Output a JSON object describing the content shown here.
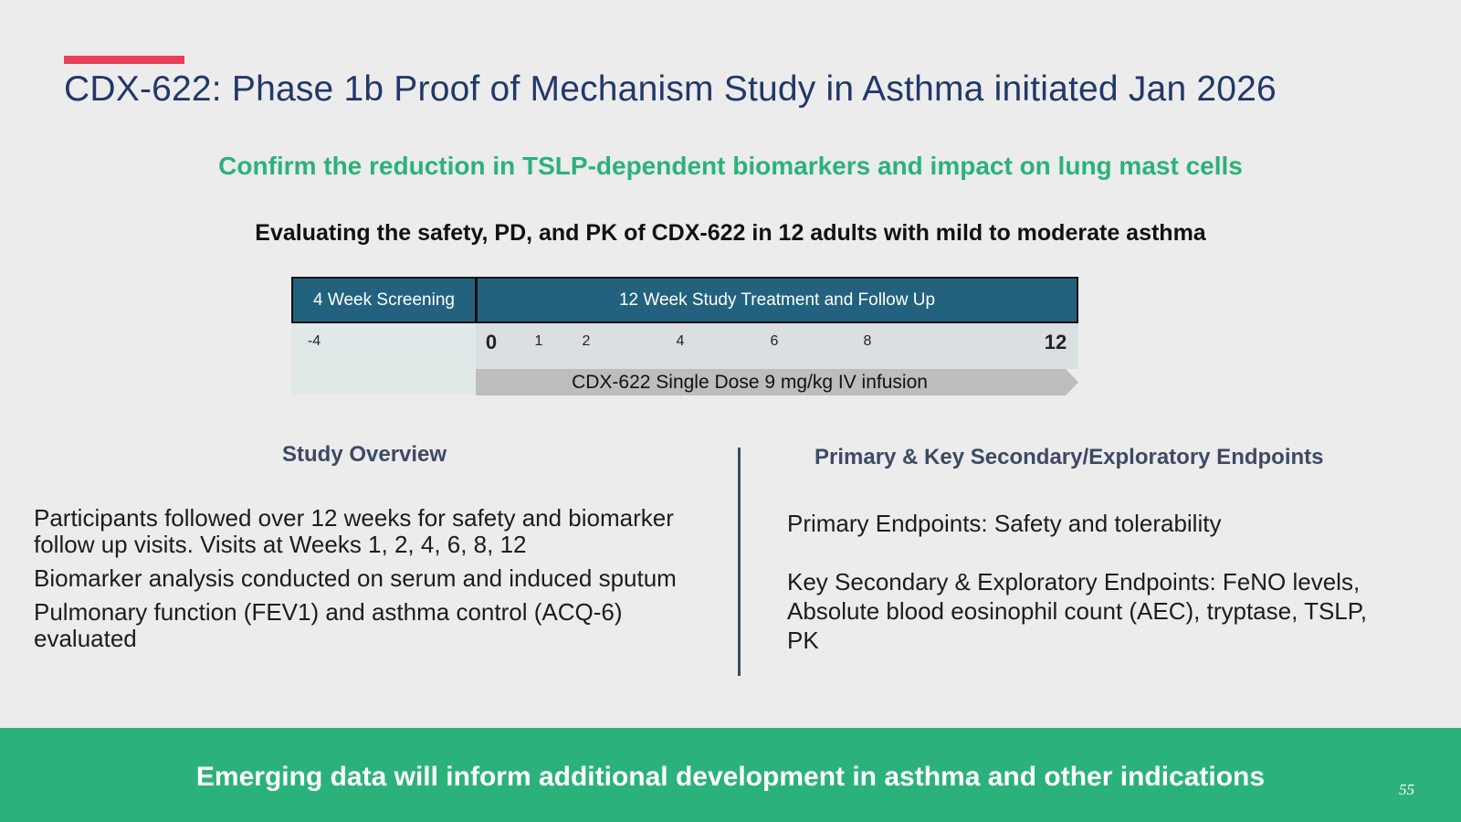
{
  "slide": {
    "title": "CDX-622: Phase 1b Proof of Mechanism Study in Asthma initiated Jan 2026",
    "subtitle": "Confirm the reduction in TSLP-dependent biomarkers and impact on lung mast cells",
    "tagline": "Evaluating the safety, PD, and PK of CDX-622 in 12 adults with mild to moderate asthma",
    "accent_color": "#e8405a",
    "green_color": "#2bb27a",
    "timeline_header_color": "#23627f"
  },
  "timeline": {
    "screening_label": "4 Week Screening",
    "study_label": "12 Week Study Treatment and Follow Up",
    "screening_week": "-4",
    "weeks": [
      "0",
      "1",
      "2",
      "4",
      "6",
      "8",
      "12"
    ],
    "dose_label": "CDX-622 Single Dose 9 mg/kg IV infusion"
  },
  "overview": {
    "heading": "Study Overview",
    "items": [
      "Participants followed over 12 weeks for safety and biomarker follow up visits. Visits at Weeks 1, 2, 4, 6, 8, 12",
      "Biomarker analysis conducted on serum and induced sputum",
      "Pulmonary function (FEV1) and asthma control (ACQ-6) evaluated"
    ]
  },
  "endpoints": {
    "heading": "Primary & Key Secondary/Exploratory Endpoints",
    "primary": "Primary Endpoints: Safety and tolerability",
    "secondary": "Key Secondary & Exploratory Endpoints: FeNO levels, Absolute blood eosinophil count (AEC), tryptase, TSLP, PK"
  },
  "footer": {
    "text": "Emerging data will inform additional development in asthma and other indications",
    "page_number": "55"
  }
}
